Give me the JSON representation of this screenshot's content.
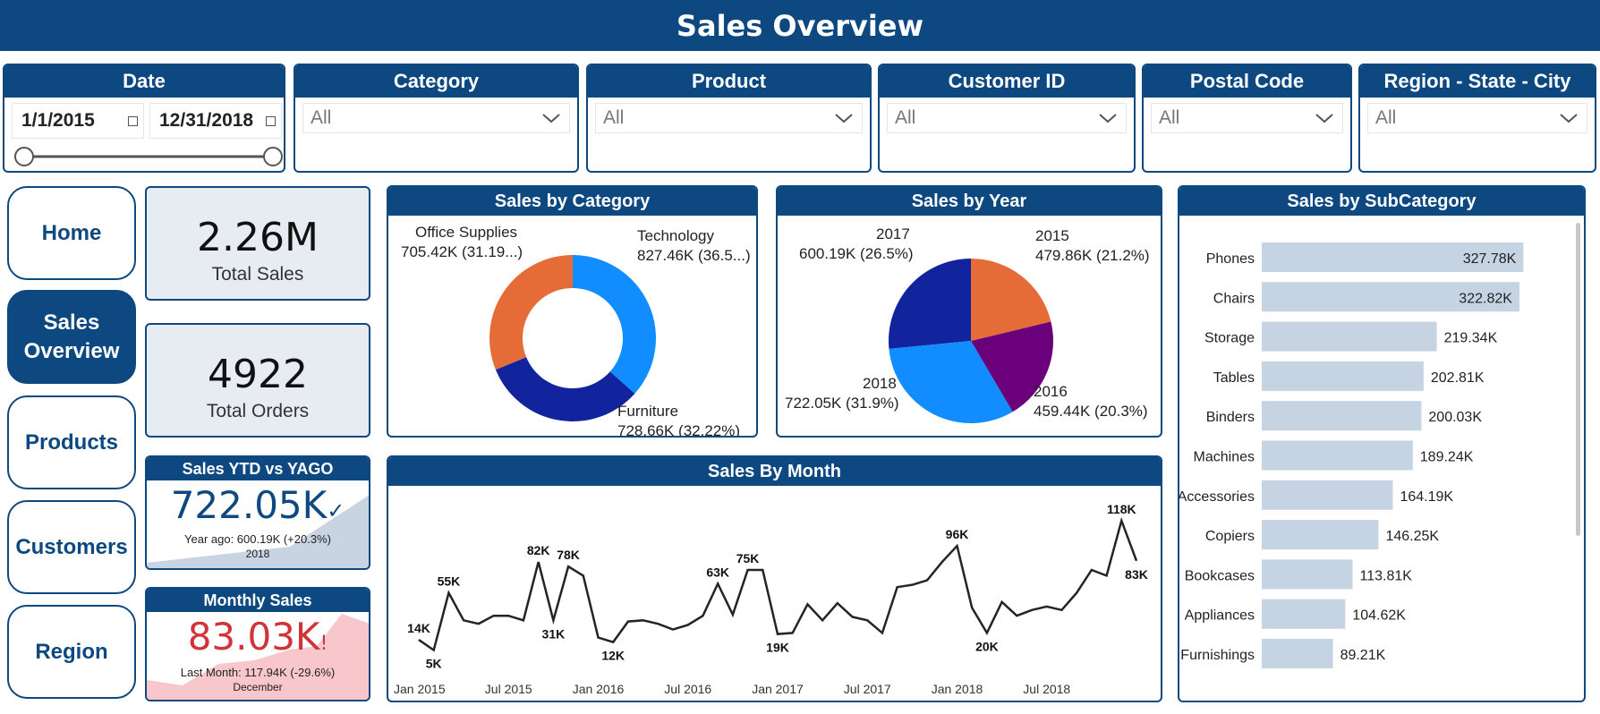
{
  "header": {
    "title": "Sales Overview"
  },
  "filters": {
    "date": {
      "label": "Date",
      "start": "1/1/2015",
      "end": "12/31/2018"
    },
    "dropdowns": [
      {
        "label": "Category",
        "value": "All"
      },
      {
        "label": "Product",
        "value": "All"
      },
      {
        "label": "Customer ID",
        "value": "All"
      },
      {
        "label": "Postal Code",
        "value": "All"
      },
      {
        "label": "Region - State - City",
        "value": "All"
      }
    ]
  },
  "nav": [
    {
      "label": "Home"
    },
    {
      "label": "Sales Overview"
    },
    {
      "label": "Products"
    },
    {
      "label": "Customers"
    },
    {
      "label": "Region"
    }
  ],
  "kpis": {
    "total_sales": {
      "value": "2.26M",
      "label": "Total Sales"
    },
    "total_orders": {
      "value": "4922",
      "label": "Total Orders"
    },
    "ytd": {
      "title": "Sales YTD vs YAGO",
      "value": "722.05K",
      "sub": "Year ago: 600.19K (+20.3%)",
      "year": "2018"
    },
    "monthly": {
      "title": "Monthly Sales",
      "value": "83.03K",
      "sub": "Last Month: 117.94K (-29.6%)",
      "month": "December"
    }
  },
  "colors": {
    "brand": "#0d4880",
    "negative": "#d13438",
    "positive": "#0d4880"
  },
  "chart_data": [
    {
      "type": "pie",
      "variant": "donut",
      "title": "Sales by Category",
      "slices": [
        {
          "name": "Technology",
          "value": 827.46,
          "label": "827.46K (36.5...)",
          "color": "#118dff"
        },
        {
          "name": "Furniture",
          "value": 728.66,
          "label": "728.66K (32.22%)",
          "color": "#12239e"
        },
        {
          "name": "Office Supplies",
          "value": 705.42,
          "label": "705.42K (31.19...)",
          "color": "#e66c37"
        }
      ]
    },
    {
      "type": "pie",
      "title": "Sales by Year",
      "slices": [
        {
          "name": "2015",
          "value": 479.86,
          "label": "479.86K (21.2%)",
          "color": "#e66c37"
        },
        {
          "name": "2016",
          "value": 459.44,
          "label": "459.44K (20.3%)",
          "color": "#6b007b"
        },
        {
          "name": "2018",
          "value": 722.05,
          "label": "722.05K (31.9%)",
          "color": "#118dff"
        },
        {
          "name": "2017",
          "value": 600.19,
          "label": "600.19K (26.5%)",
          "color": "#12239e"
        }
      ]
    },
    {
      "type": "bar",
      "orientation": "horizontal",
      "title": "Sales by SubCategory",
      "categories": [
        "Phones",
        "Chairs",
        "Storage",
        "Tables",
        "Binders",
        "Machines",
        "Accessories",
        "Copiers",
        "Bookcases",
        "Appliances",
        "Furnishings"
      ],
      "values": [
        327.78,
        322.82,
        219.34,
        202.81,
        200.03,
        189.24,
        164.19,
        146.25,
        113.81,
        104.62,
        89.21
      ],
      "labels": [
        "327.78K",
        "322.82K",
        "219.34K",
        "202.81K",
        "200.03K",
        "189.24K",
        "164.19K",
        "146.25K",
        "113.81K",
        "104.62K",
        "89.21K"
      ],
      "xlim": [
        0,
        370
      ],
      "bar_color": "#c5d3e3"
    },
    {
      "type": "line",
      "title": "Sales By Month",
      "x_ticks": [
        "Jan 2015",
        "Jul 2015",
        "Jan 2016",
        "Jul 2016",
        "Jan 2017",
        "Jul 2017",
        "Jan 2018",
        "Jul 2018"
      ],
      "values": [
        14,
        5,
        55,
        31,
        28,
        35,
        35,
        31,
        82,
        31,
        78,
        70,
        16,
        12,
        30,
        31,
        28,
        23,
        27,
        35,
        63,
        36,
        75,
        75,
        19,
        20,
        45,
        31,
        46,
        34,
        31,
        20,
        60,
        62,
        66,
        82,
        96,
        42,
        20,
        47,
        35,
        40,
        43,
        40,
        55,
        75,
        70,
        118,
        83
      ],
      "point_labels": [
        {
          "index": 0,
          "text": "14K"
        },
        {
          "index": 1,
          "text": "5K"
        },
        {
          "index": 2,
          "text": "55K"
        },
        {
          "index": 8,
          "text": "82K"
        },
        {
          "index": 9,
          "text": "31K"
        },
        {
          "index": 10,
          "text": "78K"
        },
        {
          "index": 13,
          "text": "12K"
        },
        {
          "index": 20,
          "text": "63K"
        },
        {
          "index": 22,
          "text": "75K"
        },
        {
          "index": 24,
          "text": "19K"
        },
        {
          "index": 36,
          "text": "96K"
        },
        {
          "index": 38,
          "text": "20K"
        },
        {
          "index": 47,
          "text": "118K"
        },
        {
          "index": 48,
          "text": "83K"
        }
      ],
      "ylim": [
        0,
        125
      ]
    }
  ]
}
